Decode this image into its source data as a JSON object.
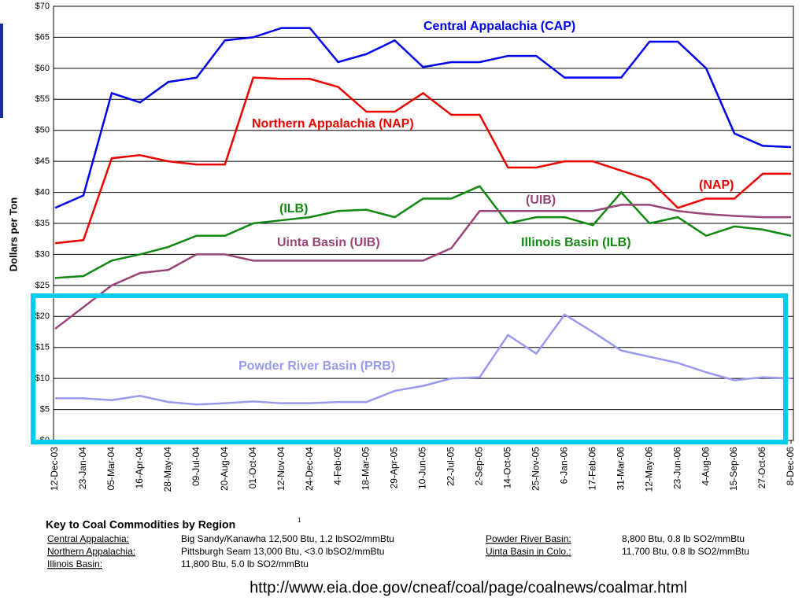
{
  "chart_data": {
    "type": "line",
    "ylabel": "Dollars per Ton",
    "categories": [
      "12-Dec-03",
      "23-Jan-04",
      "05-Mar-04",
      "16-Apr-04",
      "28-May-04",
      "09-Jul-04",
      "20-Aug-04",
      "01-Oct-04",
      "12-Nov-04",
      "24-Dec-04",
      "4-Feb-05",
      "18-Mar-05",
      "29-Apr-05",
      "10-Jun-05",
      "22-Jul-05",
      "2-Sep-05",
      "14-Oct-05",
      "25-Nov-05",
      "6-Jan-06",
      "17-Feb-06",
      "31-Mar-06",
      "12-May-06",
      "23-Jun-06",
      "4-Aug-06",
      "15-Sep-06",
      "27-Oct-06",
      "8-Dec-06"
    ],
    "series": [
      {
        "name": "Central Appalachia (CAP)",
        "color": "#0000ee",
        "values": [
          37.5,
          39.5,
          56,
          54.5,
          57.8,
          58.5,
          64.5,
          65,
          66.5,
          66.5,
          61,
          62.3,
          64.5,
          60.2,
          61,
          61,
          62,
          62,
          58.5,
          58.5,
          58.5,
          64.3,
          64.3,
          60,
          49.5,
          47.5,
          47.3
        ]
      },
      {
        "name": "Northern Appalachia (NAP)",
        "color": "#ee0000",
        "values": [
          31.8,
          32.3,
          45.5,
          46,
          45,
          44.5,
          44.5,
          58.5,
          58.3,
          58.3,
          57,
          53,
          53,
          56,
          52.5,
          52.5,
          44,
          44,
          45,
          45,
          43.5,
          42,
          37.5,
          39,
          39,
          43,
          43
        ]
      },
      {
        "name": "Illinois Basin (ILB)",
        "color": "#118811",
        "values": [
          26.2,
          26.5,
          29,
          30,
          31.2,
          33,
          33,
          35,
          35.5,
          36,
          37,
          37.2,
          36,
          39,
          39,
          41,
          35,
          36,
          36,
          34.7,
          40,
          35,
          36,
          33,
          34.5,
          34,
          33
        ]
      },
      {
        "name": "Uinta Basin (UIB)",
        "color": "#994477",
        "values": [
          18,
          21.5,
          25,
          27,
          27.5,
          30,
          30,
          29,
          29,
          29,
          29,
          29,
          29,
          29,
          31,
          37,
          37,
          37,
          37,
          37,
          38,
          38,
          37,
          36.5,
          36.2,
          36,
          36
        ]
      },
      {
        "name": "Powder River Basin (PRB)",
        "color": "#9999ee",
        "values": [
          6.8,
          6.8,
          6.5,
          7.2,
          6.2,
          5.8,
          6,
          6.3,
          6,
          6,
          6.2,
          6.2,
          8,
          8.8,
          10,
          10.2,
          17,
          14,
          20.3,
          17.5,
          14.5,
          13.5,
          12.5,
          11,
          9.7,
          10.2,
          10
        ]
      }
    ],
    "annotations": [
      "(NAP)",
      "(ILB)",
      "(UIB)"
    ],
    "ylim": [
      0,
      70
    ],
    "yticks": [
      {
        "value": 0,
        "label": "$0"
      },
      {
        "value": 5,
        "label": "$5"
      },
      {
        "value": 10,
        "label": "$10"
      },
      {
        "value": 15,
        "label": "$15"
      },
      {
        "value": 20,
        "label": "$20"
      },
      {
        "value": 25,
        "label": "$25"
      },
      {
        "value": 30,
        "label": "$30"
      },
      {
        "value": 35,
        "label": "$35"
      },
      {
        "value": 40,
        "label": "$40"
      },
      {
        "value": 45,
        "label": "$45"
      },
      {
        "value": 50,
        "label": "$50"
      },
      {
        "value": 55,
        "label": "$55"
      },
      {
        "value": 60,
        "label": "$60"
      },
      {
        "value": 65,
        "label": "$65"
      },
      {
        "value": 70,
        "label": "$70"
      }
    ],
    "grid": true
  },
  "key": {
    "title": "Key to Coal Commodities by Region",
    "note": "1",
    "items": [
      {
        "name": "Central Appalachia:",
        "spec": "Big Sandy/Kanawha 12,500 Btu, 1.2 lbSO2/mmBtu"
      },
      {
        "name": "Northern Appalachia:",
        "spec": "Pittsburgh Seam 13,000 Btu, <3.0 lbSO2/mmBtu"
      },
      {
        "name": "Illinois Basin:",
        "spec": "11,800 Btu, 5.0 lb SO2/mmBtu"
      },
      {
        "name": "Powder River Basin:",
        "spec": "8,800 Btu, 0.8 lb SO2/mmBtu"
      },
      {
        "name": "Uinta Basin in Colo.:",
        "spec": "11,700 Btu, 0.8 lb SO2/mmBtu"
      }
    ]
  },
  "url": "http://www.eia.doe.gov/cneaf/coal/page/coalnews/coalmar.html"
}
